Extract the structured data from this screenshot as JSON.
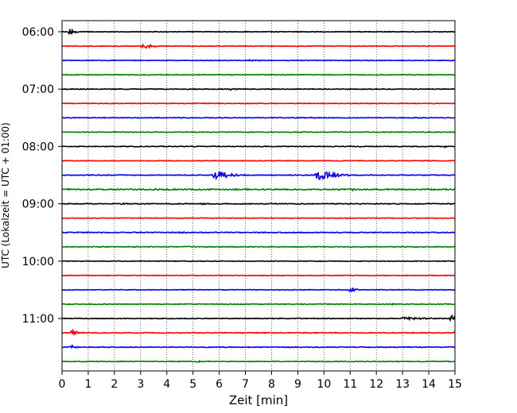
{
  "chart_data": {
    "type": "line",
    "title": "",
    "xlabel": "Zeit  [min]",
    "ylabel": "UTC (Lokalzeit = UTC + 01:00)",
    "xlim": [
      0,
      15
    ],
    "xticks": [
      0,
      1,
      2,
      3,
      4,
      5,
      6,
      7,
      8,
      9,
      10,
      11,
      12,
      13,
      14,
      15
    ],
    "ytick_labels": [
      "06:00",
      "07:00",
      "08:00",
      "09:00",
      "10:00",
      "11:00"
    ],
    "grid": "vertical dotted at each minute",
    "color_cycle": [
      "#000000",
      "#ff0000",
      "#0000ff",
      "#008000"
    ],
    "series": [
      {
        "start": "06:00",
        "color": "#000000",
        "noise": 0.25,
        "events": [
          {
            "t": 0.25,
            "amp": 2.8,
            "dur": 0.6
          }
        ]
      },
      {
        "start": "06:15",
        "color": "#ff0000",
        "noise": 0.25,
        "events": [
          {
            "t": 3.1,
            "amp": 2.6,
            "dur": 1.0
          }
        ]
      },
      {
        "start": "06:30",
        "color": "#0000ff",
        "noise": 0.25,
        "events": [
          {
            "t": 7.2,
            "amp": 1.0,
            "dur": 1.2
          }
        ]
      },
      {
        "start": "06:45",
        "color": "#008000",
        "noise": 0.3,
        "events": []
      },
      {
        "start": "07:00",
        "color": "#000000",
        "noise": 0.28,
        "events": [
          {
            "t": 6.4,
            "amp": 0.9,
            "dur": 1.0
          }
        ]
      },
      {
        "start": "07:15",
        "color": "#ff0000",
        "noise": 0.25,
        "events": []
      },
      {
        "start": "07:30",
        "color": "#0000ff",
        "noise": 0.28,
        "events": [
          {
            "t": 9.5,
            "amp": 0.6,
            "dur": 1.0
          }
        ]
      },
      {
        "start": "07:45",
        "color": "#008000",
        "noise": 0.3,
        "events": [
          {
            "t": 9.2,
            "amp": 0.7,
            "dur": 0.6
          }
        ]
      },
      {
        "start": "08:00",
        "color": "#000000",
        "noise": 0.28,
        "events": [
          {
            "t": 14.6,
            "amp": 0.8,
            "dur": 0.4
          }
        ]
      },
      {
        "start": "08:15",
        "color": "#ff0000",
        "noise": 0.25,
        "events": []
      },
      {
        "start": "08:30",
        "color": "#0000ff",
        "noise": 0.3,
        "events": [
          {
            "t": 5.8,
            "amp": 4.5,
            "dur": 1.6
          },
          {
            "t": 9.7,
            "amp": 4.5,
            "dur": 1.8
          }
        ]
      },
      {
        "start": "08:45",
        "color": "#008000",
        "noise": 0.45,
        "events": [
          {
            "t": 0.3,
            "amp": 1.0,
            "dur": 0.4
          },
          {
            "t": 11.1,
            "amp": 0.9,
            "dur": 0.4
          }
        ]
      },
      {
        "start": "09:00",
        "color": "#000000",
        "noise": 0.32,
        "events": [
          {
            "t": 2.3,
            "amp": 0.9,
            "dur": 0.8
          },
          {
            "t": 5.4,
            "amp": 1.0,
            "dur": 0.3
          }
        ]
      },
      {
        "start": "09:15",
        "color": "#ff0000",
        "noise": 0.25,
        "events": []
      },
      {
        "start": "09:30",
        "color": "#0000ff",
        "noise": 0.32,
        "events": [
          {
            "t": 4.5,
            "amp": 0.8,
            "dur": 1.0
          }
        ]
      },
      {
        "start": "09:45",
        "color": "#008000",
        "noise": 0.3,
        "events": []
      },
      {
        "start": "10:00",
        "color": "#000000",
        "noise": 0.25,
        "events": []
      },
      {
        "start": "10:15",
        "color": "#ff0000",
        "noise": 0.25,
        "events": []
      },
      {
        "start": "10:30",
        "color": "#0000ff",
        "noise": 0.25,
        "events": [
          {
            "t": 11.0,
            "amp": 3.6,
            "dur": 0.5
          }
        ]
      },
      {
        "start": "10:45",
        "color": "#008000",
        "noise": 0.3,
        "events": [
          {
            "t": 12.6,
            "amp": 0.8,
            "dur": 0.8
          }
        ]
      },
      {
        "start": "11:00",
        "color": "#000000",
        "noise": 0.3,
        "events": [
          {
            "t": 13.0,
            "amp": 1.1,
            "dur": 3.5
          },
          {
            "t": 14.85,
            "amp": 2.8,
            "dur": 0.4
          }
        ]
      },
      {
        "start": "11:15",
        "color": "#ff0000",
        "noise": 0.32,
        "events": [
          {
            "t": 0.35,
            "amp": 2.4,
            "dur": 0.8
          },
          {
            "t": 14.95,
            "amp": 1.5,
            "dur": 0.3
          }
        ]
      },
      {
        "start": "11:30",
        "color": "#0000ff",
        "noise": 0.3,
        "events": [
          {
            "t": 0.35,
            "amp": 1.8,
            "dur": 0.6
          }
        ]
      },
      {
        "start": "11:45",
        "color": "#008000",
        "noise": 0.28,
        "events": [
          {
            "t": 5.2,
            "amp": 0.7,
            "dur": 0.8
          }
        ]
      }
    ]
  }
}
